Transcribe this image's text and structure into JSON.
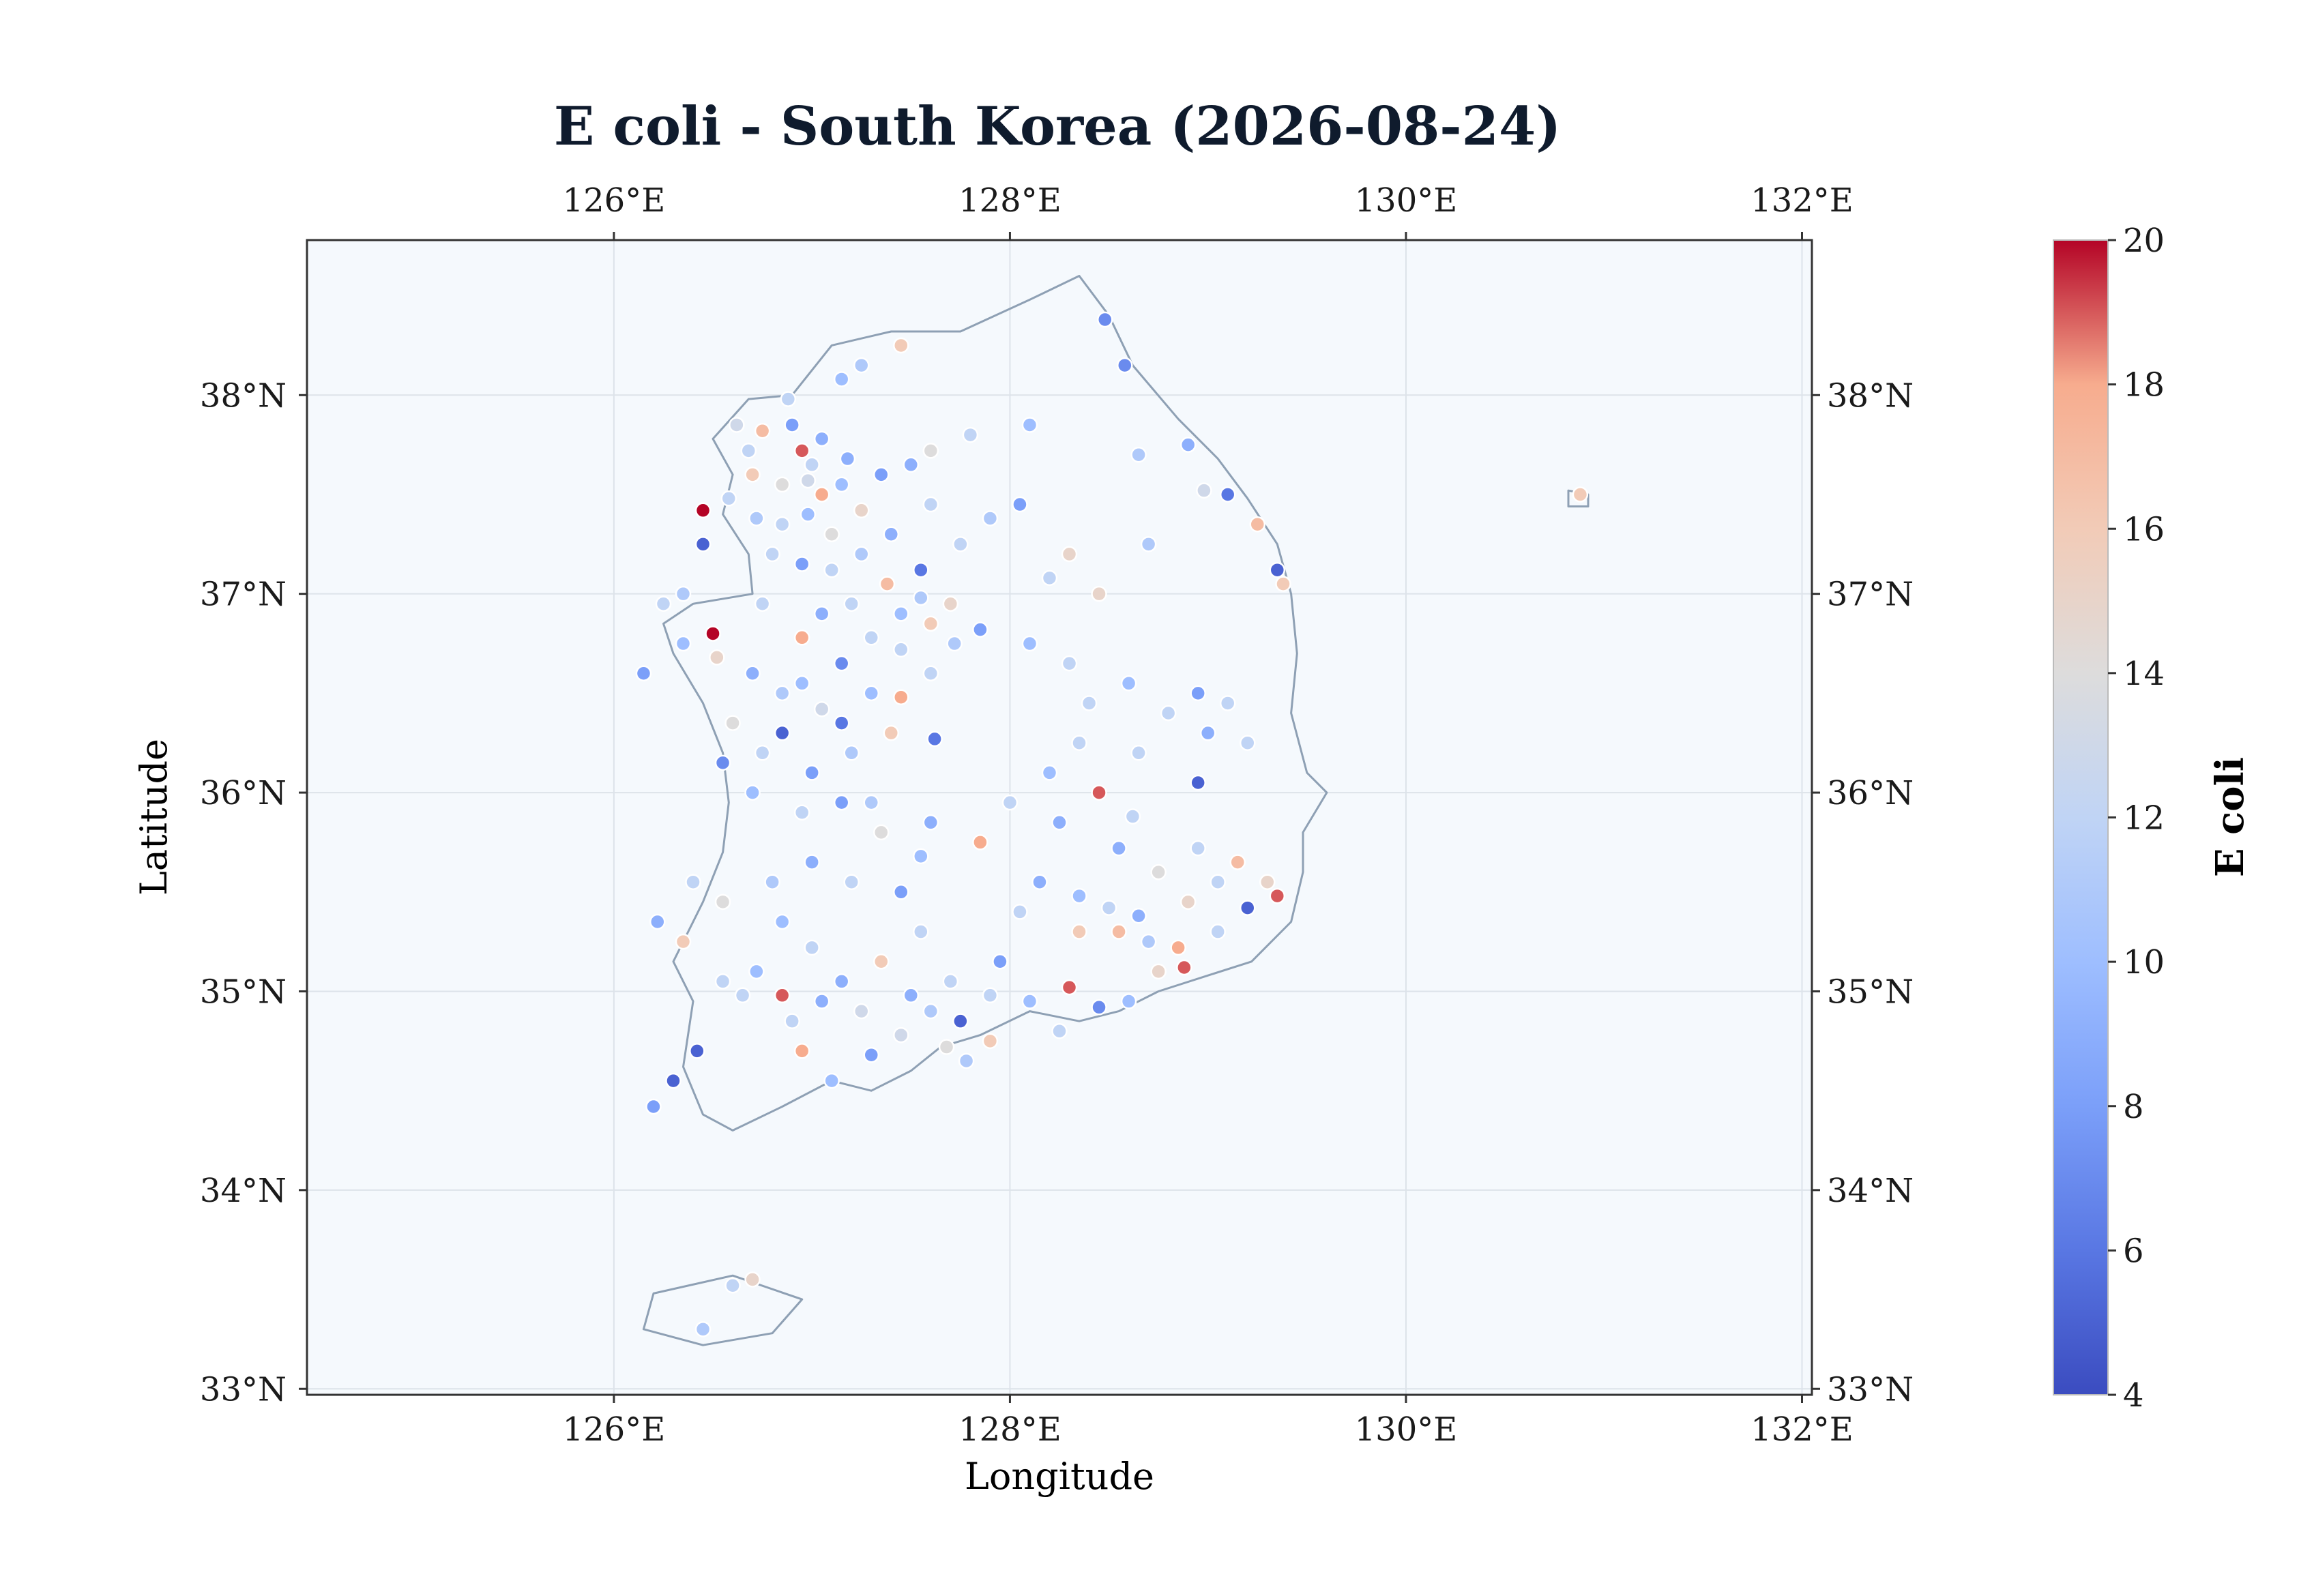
{
  "title": "E coli - South Korea (2026-08-24)",
  "xlabel": "Longitude",
  "ylabel": "Latitude",
  "colorbar_label": "E coli",
  "colors": {
    "background": "#f5f9fd",
    "grid": "#dde3ea",
    "coast": "#8ea0b4",
    "frame": "#333333",
    "title": "#0f1b2d"
  },
  "x_ticks": [
    {
      "value": 126,
      "label": "126°E"
    },
    {
      "value": 128,
      "label": "128°E"
    },
    {
      "value": 130,
      "label": "130°E"
    },
    {
      "value": 132,
      "label": "132°E"
    }
  ],
  "y_ticks": [
    {
      "value": 33,
      "label": "33°N"
    },
    {
      "value": 34,
      "label": "34°N"
    },
    {
      "value": 35,
      "label": "35°N"
    },
    {
      "value": 36,
      "label": "36°N"
    },
    {
      "value": 37,
      "label": "37°N"
    },
    {
      "value": 38,
      "label": "38°N"
    }
  ],
  "colorbar_ticks": [
    {
      "value": 4,
      "label": "4"
    },
    {
      "value": 6,
      "label": "6"
    },
    {
      "value": 8,
      "label": "8"
    },
    {
      "value": 10,
      "label": "10"
    },
    {
      "value": 12,
      "label": "12"
    },
    {
      "value": 14,
      "label": "14"
    },
    {
      "value": 16,
      "label": "16"
    },
    {
      "value": 18,
      "label": "18"
    },
    {
      "value": 20,
      "label": "20"
    }
  ],
  "chart_data": {
    "type": "scatter",
    "colormap": "coolwarm",
    "xlim": [
      124.45,
      132.05
    ],
    "ylim": [
      32.97,
      38.78
    ],
    "clim": [
      4,
      20
    ],
    "grid": true,
    "coastline": [
      [
        126.68,
        37.98
      ],
      [
        126.9,
        38.0
      ],
      [
        127.1,
        38.25
      ],
      [
        127.4,
        38.32
      ],
      [
        127.75,
        38.32
      ],
      [
        128.1,
        38.48
      ],
      [
        128.35,
        38.6
      ],
      [
        128.5,
        38.4
      ],
      [
        128.62,
        38.15
      ],
      [
        128.85,
        37.88
      ],
      [
        129.05,
        37.68
      ],
      [
        129.2,
        37.48
      ],
      [
        129.35,
        37.25
      ],
      [
        129.42,
        37.0
      ],
      [
        129.45,
        36.7
      ],
      [
        129.42,
        36.4
      ],
      [
        129.5,
        36.1
      ],
      [
        129.6,
        36.0
      ],
      [
        129.48,
        35.8
      ],
      [
        129.48,
        35.6
      ],
      [
        129.42,
        35.35
      ],
      [
        129.22,
        35.15
      ],
      [
        129.0,
        35.08
      ],
      [
        128.75,
        35.0
      ],
      [
        128.55,
        34.9
      ],
      [
        128.35,
        34.85
      ],
      [
        128.1,
        34.9
      ],
      [
        127.85,
        34.78
      ],
      [
        127.65,
        34.72
      ],
      [
        127.5,
        34.6
      ],
      [
        127.3,
        34.5
      ],
      [
        127.1,
        34.55
      ],
      [
        126.85,
        34.42
      ],
      [
        126.6,
        34.3
      ],
      [
        126.45,
        34.38
      ],
      [
        126.35,
        34.62
      ],
      [
        126.4,
        34.95
      ],
      [
        126.3,
        35.15
      ],
      [
        126.45,
        35.45
      ],
      [
        126.55,
        35.7
      ],
      [
        126.58,
        35.95
      ],
      [
        126.55,
        36.2
      ],
      [
        126.45,
        36.45
      ],
      [
        126.3,
        36.7
      ],
      [
        126.25,
        36.85
      ],
      [
        126.4,
        36.95
      ],
      [
        126.7,
        37.0
      ],
      [
        126.68,
        37.2
      ],
      [
        126.55,
        37.4
      ],
      [
        126.6,
        37.6
      ],
      [
        126.5,
        37.78
      ],
      [
        126.68,
        37.98
      ]
    ],
    "islands": [
      [
        [
          126.15,
          33.3
        ],
        [
          126.45,
          33.22
        ],
        [
          126.8,
          33.28
        ],
        [
          126.95,
          33.45
        ],
        [
          126.6,
          33.57
        ],
        [
          126.2,
          33.48
        ],
        [
          126.15,
          33.3
        ]
      ],
      [
        [
          130.82,
          37.52
        ],
        [
          130.92,
          37.5
        ],
        [
          130.92,
          37.44
        ],
        [
          130.82,
          37.44
        ],
        [
          130.82,
          37.52
        ]
      ]
    ],
    "points": [
      [
        128.48,
        38.38,
        7
      ],
      [
        128.58,
        38.15,
        7
      ],
      [
        127.45,
        38.25,
        16
      ],
      [
        127.25,
        38.15,
        11
      ],
      [
        127.15,
        38.08,
        10
      ],
      [
        126.88,
        37.98,
        12
      ],
      [
        126.75,
        37.82,
        17
      ],
      [
        126.95,
        37.72,
        19
      ],
      [
        127.05,
        37.78,
        9
      ],
      [
        126.7,
        37.6,
        16
      ],
      [
        126.45,
        37.42,
        20
      ],
      [
        126.45,
        37.25,
        5
      ],
      [
        126.58,
        37.48,
        12
      ],
      [
        126.85,
        37.55,
        14
      ],
      [
        126.98,
        37.57,
        13
      ],
      [
        127.05,
        37.5,
        18
      ],
      [
        127.15,
        37.55,
        10
      ],
      [
        127.25,
        37.42,
        15
      ],
      [
        127.35,
        37.6,
        8
      ],
      [
        127.5,
        37.65,
        9
      ],
      [
        127.6,
        37.72,
        14
      ],
      [
        127.8,
        37.8,
        12
      ],
      [
        128.1,
        37.85,
        10
      ],
      [
        128.65,
        37.7,
        11
      ],
      [
        128.9,
        37.75,
        9
      ],
      [
        128.98,
        37.52,
        13
      ],
      [
        129.1,
        37.5,
        6
      ],
      [
        129.25,
        37.35,
        17
      ],
      [
        129.35,
        37.12,
        5
      ],
      [
        129.38,
        37.05,
        16
      ],
      [
        128.3,
        37.2,
        15
      ],
      [
        128.05,
        37.45,
        8
      ],
      [
        127.9,
        37.38,
        11
      ],
      [
        127.75,
        37.25,
        12
      ],
      [
        127.55,
        37.12,
        6
      ],
      [
        127.38,
        37.05,
        17
      ],
      [
        127.2,
        36.95,
        12
      ],
      [
        127.05,
        36.9,
        9
      ],
      [
        126.95,
        36.78,
        18
      ],
      [
        126.75,
        36.95,
        12
      ],
      [
        126.5,
        36.8,
        20
      ],
      [
        126.35,
        36.75,
        10
      ],
      [
        126.52,
        36.68,
        15
      ],
      [
        126.7,
        36.6,
        9
      ],
      [
        126.85,
        36.5,
        11
      ],
      [
        127.05,
        36.42,
        13
      ],
      [
        127.15,
        36.35,
        6
      ],
      [
        127.3,
        36.5,
        10
      ],
      [
        127.45,
        36.48,
        18
      ],
      [
        127.6,
        36.6,
        12
      ],
      [
        127.72,
        36.75,
        11
      ],
      [
        127.85,
        36.82,
        8
      ],
      [
        127.6,
        36.85,
        16
      ],
      [
        127.45,
        36.72,
        12
      ],
      [
        126.85,
        36.3,
        5
      ],
      [
        126.6,
        36.35,
        14
      ],
      [
        126.55,
        36.15,
        7
      ],
      [
        126.7,
        36.0,
        10
      ],
      [
        126.95,
        35.9,
        12
      ],
      [
        127.15,
        35.95,
        8
      ],
      [
        127.35,
        35.8,
        14
      ],
      [
        127.6,
        35.85,
        9
      ],
      [
        127.85,
        35.75,
        18
      ],
      [
        128.0,
        35.95,
        12
      ],
      [
        128.2,
        36.1,
        10
      ],
      [
        128.35,
        36.25,
        12
      ],
      [
        128.45,
        36.0,
        19
      ],
      [
        128.62,
        35.88,
        12
      ],
      [
        128.55,
        35.72,
        9
      ],
      [
        128.75,
        35.6,
        14
      ],
      [
        128.95,
        35.72,
        12
      ],
      [
        129.15,
        35.65,
        17
      ],
      [
        129.3,
        35.55,
        15
      ],
      [
        129.35,
        35.48,
        19
      ],
      [
        129.2,
        35.42,
        5
      ],
      [
        129.05,
        35.3,
        12
      ],
      [
        128.85,
        35.22,
        18
      ],
      [
        128.7,
        35.25,
        11
      ],
      [
        128.55,
        35.3,
        17
      ],
      [
        128.35,
        35.3,
        16
      ],
      [
        128.3,
        35.02,
        19
      ],
      [
        128.45,
        34.92,
        7
      ],
      [
        128.1,
        34.95,
        10
      ],
      [
        127.9,
        34.98,
        12
      ],
      [
        127.75,
        34.85,
        5
      ],
      [
        127.6,
        34.9,
        11
      ],
      [
        127.45,
        34.78,
        13
      ],
      [
        127.3,
        34.68,
        8
      ],
      [
        127.1,
        34.55,
        10
      ],
      [
        126.95,
        34.7,
        18
      ],
      [
        126.85,
        34.98,
        19
      ],
      [
        126.72,
        35.1,
        10
      ],
      [
        126.55,
        35.05,
        12
      ],
      [
        126.42,
        34.7,
        5
      ],
      [
        126.3,
        34.55,
        5
      ],
      [
        126.35,
        35.25,
        16
      ],
      [
        126.55,
        35.45,
        14
      ],
      [
        126.8,
        35.55,
        11
      ],
      [
        127.0,
        35.65,
        9
      ],
      [
        127.2,
        35.55,
        12
      ],
      [
        127.45,
        35.5,
        8
      ],
      [
        127.55,
        35.3,
        12
      ],
      [
        127.35,
        35.15,
        16
      ],
      [
        127.15,
        35.05,
        9
      ],
      [
        127.0,
        35.22,
        12
      ],
      [
        126.85,
        35.35,
        10
      ],
      [
        126.65,
        34.98,
        12
      ],
      [
        126.9,
        34.85,
        12
      ],
      [
        127.05,
        34.95,
        9
      ],
      [
        127.25,
        34.9,
        13
      ],
      [
        127.5,
        34.98,
        9
      ],
      [
        127.7,
        35.05,
        12
      ],
      [
        127.95,
        35.15,
        8
      ],
      [
        128.05,
        35.4,
        12
      ],
      [
        128.15,
        35.55,
        9
      ],
      [
        128.35,
        35.48,
        10
      ],
      [
        128.5,
        35.42,
        12
      ],
      [
        128.65,
        35.38,
        9
      ],
      [
        128.9,
        35.45,
        15
      ],
      [
        129.05,
        35.55,
        12
      ],
      [
        128.25,
        35.85,
        9
      ],
      [
        128.4,
        36.45,
        12
      ],
      [
        128.6,
        36.55,
        10
      ],
      [
        128.8,
        36.4,
        12
      ],
      [
        129.0,
        36.3,
        9
      ],
      [
        129.2,
        36.25,
        12
      ],
      [
        128.95,
        36.05,
        5
      ],
      [
        128.65,
        36.2,
        12
      ],
      [
        128.95,
        36.5,
        8
      ],
      [
        129.1,
        36.45,
        12
      ],
      [
        126.85,
        37.35,
        12
      ],
      [
        126.98,
        37.4,
        10
      ],
      [
        127.1,
        37.3,
        14
      ],
      [
        126.72,
        37.38,
        11
      ],
      [
        126.68,
        37.72,
        12
      ],
      [
        126.62,
        37.85,
        13
      ],
      [
        126.9,
        37.85,
        8
      ],
      [
        127.0,
        37.65,
        12
      ],
      [
        127.18,
        37.68,
        9
      ],
      [
        126.8,
        37.2,
        12
      ],
      [
        126.95,
        37.15,
        8
      ],
      [
        127.1,
        37.12,
        12
      ],
      [
        127.25,
        37.2,
        11
      ],
      [
        127.4,
        37.3,
        9
      ],
      [
        127.6,
        37.45,
        12
      ],
      [
        127.7,
        36.95,
        15
      ],
      [
        127.55,
        36.98,
        11
      ],
      [
        127.0,
        36.1,
        8
      ],
      [
        127.2,
        36.2,
        11
      ],
      [
        126.75,
        36.2,
        12
      ],
      [
        128.7,
        37.25,
        11
      ],
      [
        128.45,
        37.0,
        15
      ],
      [
        128.2,
        37.08,
        12
      ],
      [
        128.1,
        36.75,
        10
      ],
      [
        128.3,
        36.65,
        12
      ],
      [
        126.22,
        35.35,
        9
      ],
      [
        126.4,
        35.55,
        12
      ],
      [
        126.25,
        36.95,
        12
      ],
      [
        126.15,
        36.6,
        8
      ],
      [
        126.35,
        37.0,
        11
      ],
      [
        127.9,
        34.75,
        16
      ],
      [
        128.25,
        34.8,
        12
      ],
      [
        128.6,
        34.95,
        10
      ],
      [
        128.75,
        35.1,
        15
      ],
      [
        128.88,
        35.12,
        19
      ],
      [
        130.88,
        37.5,
        16
      ],
      [
        126.7,
        33.55,
        15
      ],
      [
        126.6,
        33.52,
        12
      ],
      [
        126.45,
        33.3,
        11
      ],
      [
        126.2,
        34.42,
        8
      ],
      [
        127.68,
        34.72,
        14
      ],
      [
        127.78,
        34.65,
        11
      ],
      [
        127.55,
        35.68,
        10
      ],
      [
        127.3,
        35.95,
        11
      ],
      [
        126.95,
        36.55,
        10
      ],
      [
        127.4,
        36.3,
        16
      ],
      [
        127.62,
        36.27,
        6
      ],
      [
        127.15,
        36.65,
        7
      ],
      [
        127.3,
        36.78,
        12
      ],
      [
        127.45,
        36.9,
        10
      ]
    ]
  }
}
